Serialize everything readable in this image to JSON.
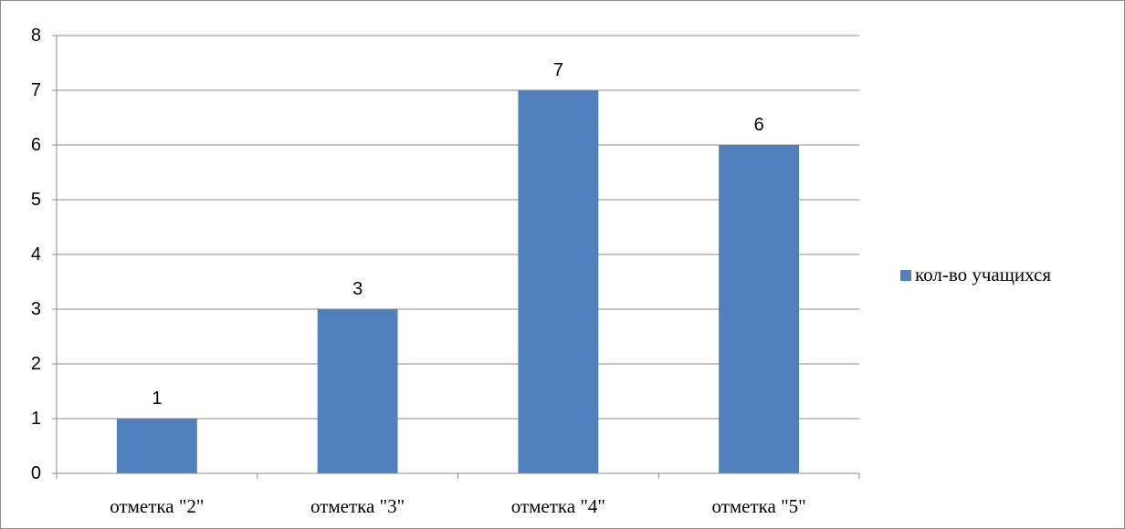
{
  "chart_data": {
    "type": "bar",
    "categories": [
      "отметка \"2\"",
      "отметка \"3\"",
      "отметка \"4\"",
      "отметка \"5\""
    ],
    "series": [
      {
        "name": "кол-во учащихся",
        "values": [
          1,
          3,
          7,
          6
        ],
        "color": "#4f81bd"
      }
    ],
    "title": "",
    "xlabel": "",
    "ylabel": "",
    "ylim": [
      0,
      8
    ],
    "yticks": [
      0,
      1,
      2,
      3,
      4,
      5,
      6,
      7,
      8
    ],
    "grid": true,
    "data_labels": true,
    "legend_position": "right"
  }
}
